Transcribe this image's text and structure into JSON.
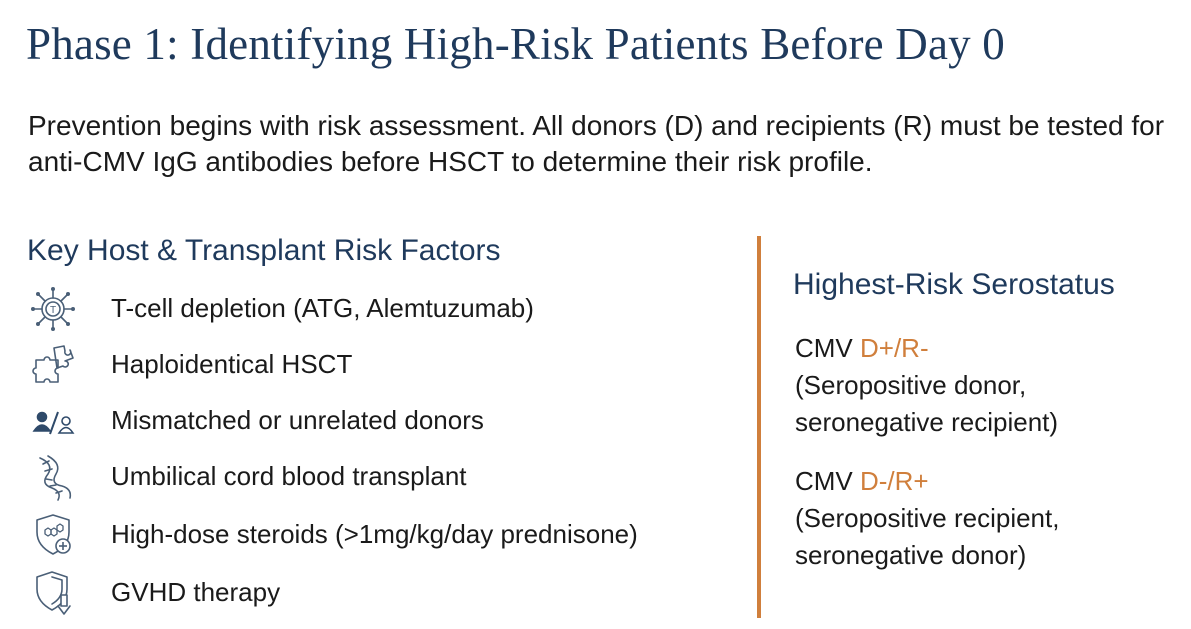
{
  "title": "Phase 1: Identifying High-Risk Patients Before Day 0",
  "intro": "Prevention begins with risk assessment. All donors (D) and recipients (R) must be tested for anti-CMV IgG antibodies before HSCT to determine their risk profile.",
  "risk_factors": {
    "heading": "Key Host & Transplant Risk Factors",
    "items": [
      {
        "label": "T-cell depletion (ATG, Alemtuzumab)",
        "icon": "t-cell-icon"
      },
      {
        "label": "Haploidentical HSCT",
        "icon": "puzzle-icon"
      },
      {
        "label": "Mismatched or unrelated donors",
        "icon": "mismatched-donor-icon"
      },
      {
        "label": "Umbilical cord blood transplant",
        "icon": "umbilical-cord-icon"
      },
      {
        "label": "High-dose steroids (>1mg/kg/day prednisone)",
        "icon": "steroid-shield-icon"
      },
      {
        "label": "GVHD therapy",
        "icon": "shield-arrow-icon"
      }
    ]
  },
  "serostatus": {
    "heading": "Highest-Risk Serostatus",
    "entries": [
      {
        "prefix": "CMV ",
        "code": "D+/R-",
        "line1": "(Seropositive donor,",
        "line2": "seronegative recipient)"
      },
      {
        "prefix": "CMV ",
        "code": "D-/R+",
        "line1": "(Seropositive recipient,",
        "line2": "seronegative donor)"
      }
    ]
  },
  "colors": {
    "title": "#1f3a5c",
    "accent": "#d07f3c",
    "icon": "#4a5f77"
  }
}
